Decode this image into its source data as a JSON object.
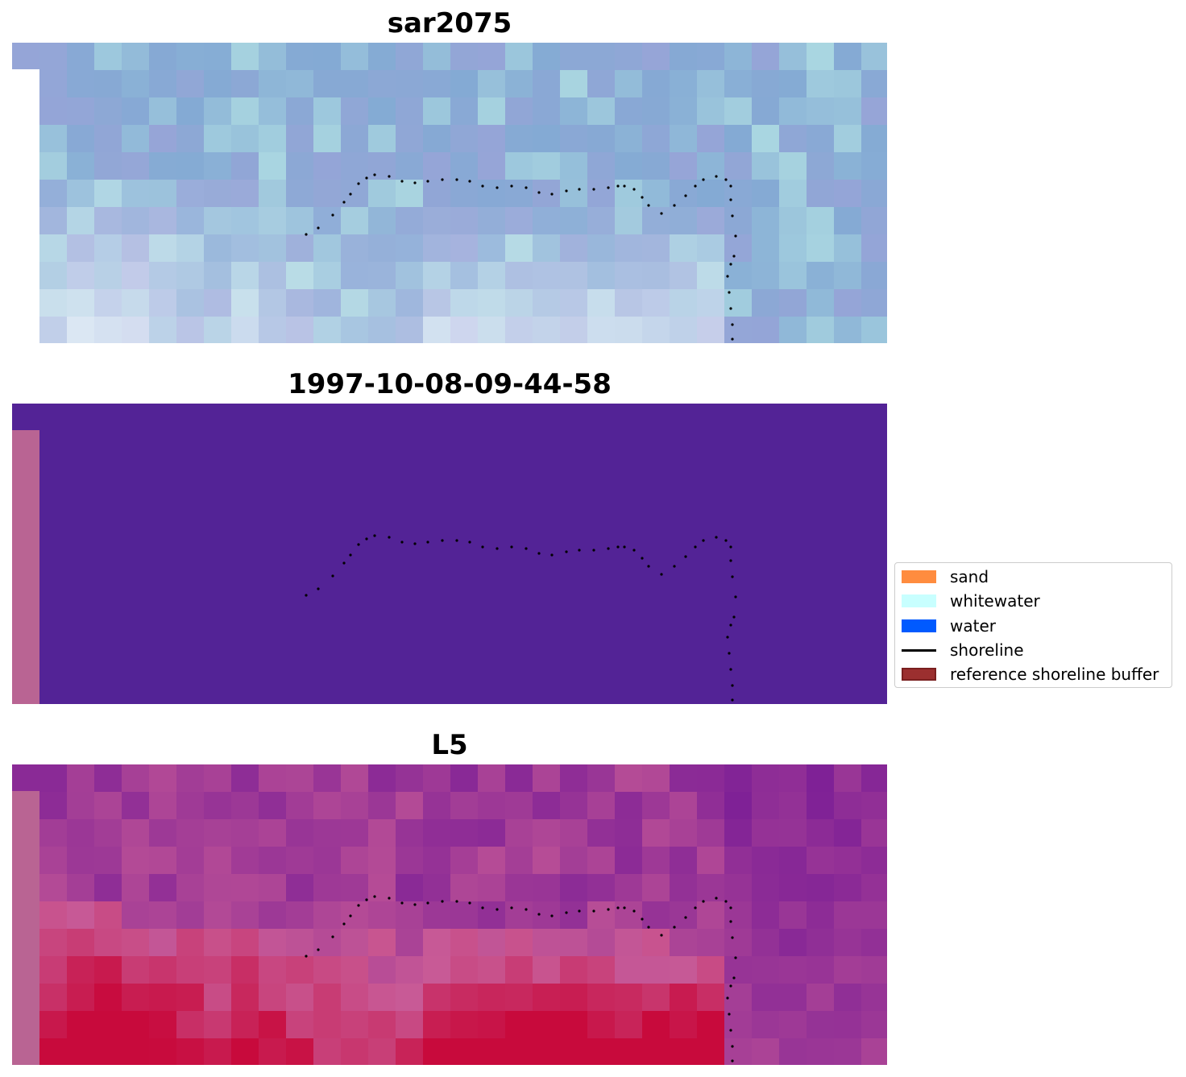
{
  "panels": [
    {
      "title": "sar2075",
      "kind": "rgb"
    },
    {
      "title": "1997-10-08-09-44-58",
      "kind": "classified"
    },
    {
      "title": "L5",
      "kind": "index"
    }
  ],
  "legend": {
    "items": [
      {
        "label": "sand",
        "color": "#ff8c3f",
        "type": "patch"
      },
      {
        "label": "whitewater",
        "color": "#c8ffff",
        "type": "patch"
      },
      {
        "label": "water",
        "color": "#005aff",
        "type": "patch"
      },
      {
        "label": "shoreline",
        "color": "#000000",
        "type": "line"
      },
      {
        "label": "reference shoreline buffer",
        "color": "#9b2f2f",
        "type": "patch-outline"
      }
    ]
  },
  "colors": {
    "classified_background": "#532396",
    "no_data_strip": "#b96493",
    "shoreline_dots": "#000000"
  }
}
